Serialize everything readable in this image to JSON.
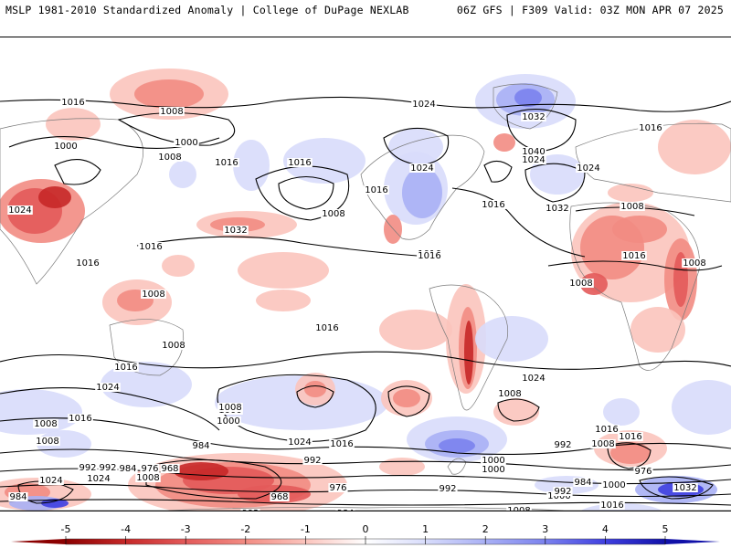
{
  "header": {
    "left": "MSLP 1981-2010 Standardized Anomaly | College of DuPage NEXLAB",
    "right": "06Z GFS | F309 Valid: 03Z MON APR 07 2025"
  },
  "colors": {
    "neg5": "#8b0000",
    "neg4": "#c62828",
    "neg3": "#e35a5a",
    "neg2": "#f28c83",
    "neg1": "#fbc4bd",
    "zero": "#ffffff",
    "pos1": "#d8dcfb",
    "pos2": "#a9b0f5",
    "pos3": "#7b82ee",
    "pos4": "#3f3fe0",
    "pos5": "#1010a8",
    "land_outline": "#7a7a7a",
    "isobar": "#000000"
  },
  "colorbar": {
    "ticks": [
      "-5",
      "-4",
      "-3",
      "-2",
      "-1",
      "0",
      "1",
      "2",
      "3",
      "4",
      "5"
    ]
  },
  "isobar_labels": [
    "1016",
    "1008",
    "1000",
    "1024",
    "1008",
    "1000",
    "1016",
    "1016",
    "1016",
    "1024",
    "1032",
    "1040",
    "1024",
    "1032",
    "1016",
    "1024",
    "1016",
    "1016",
    "1008",
    "1024",
    "1016",
    "1008",
    "1032",
    "1008",
    "1016",
    "1016",
    "1008",
    "1008",
    "1016",
    "1008",
    "1008",
    "1016",
    "1016",
    "1024",
    "1016",
    "1024",
    "1008",
    "1000",
    "1008",
    "1000",
    "1008",
    "984",
    "1024",
    "1016",
    "992",
    "992",
    "984",
    "976",
    "968",
    "1024",
    "1008",
    "992",
    "968",
    "976",
    "1000",
    "984",
    "1008",
    "1000",
    "992",
    "1016",
    "1008",
    "992",
    "1000",
    "984",
    "976",
    "992",
    "984",
    "1000",
    "1008",
    "1016",
    "1032",
    "1032",
    "1024",
    "1016",
    "1008",
    "1000",
    "992"
  ]
}
